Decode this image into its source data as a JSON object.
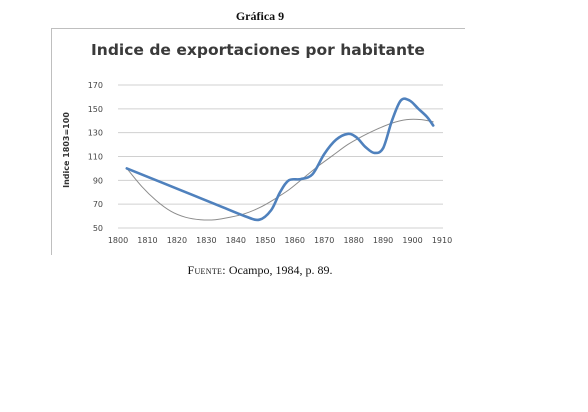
{
  "figure": {
    "heading": "Gráfica 9",
    "source_label": "Fuente:",
    "source_text": " Ocampo, 1984, p. 89."
  },
  "chart_data": {
    "type": "line",
    "title": "Indice de exportaciones por habitante",
    "xlabel": "",
    "ylabel": "Indice 1803=100",
    "xlim": [
      1800,
      1910
    ],
    "ylim": [
      50,
      170
    ],
    "xticks": [
      1800,
      1810,
      1820,
      1830,
      1840,
      1850,
      1860,
      1870,
      1880,
      1890,
      1900,
      1910
    ],
    "yticks": [
      50,
      70,
      90,
      110,
      130,
      150,
      170
    ],
    "grid": "horizontal",
    "legend": "none",
    "series": [
      {
        "key": "index",
        "color": "#4f81bd",
        "x": [
          1803,
          1815,
          1825,
          1835,
          1843,
          1848,
          1852,
          1855,
          1858,
          1862,
          1866,
          1870,
          1874,
          1878,
          1881,
          1884,
          1887,
          1890,
          1893,
          1896,
          1899,
          1902,
          1905,
          1907
        ],
        "y": [
          100,
          88,
          78,
          68,
          60,
          57,
          65,
          80,
          90,
          91,
          95,
          112,
          124,
          129,
          126,
          118,
          113,
          117,
          140,
          157,
          157,
          150,
          143,
          136
        ]
      },
      {
        "key": "trend",
        "color": "#8c8c8c",
        "x": [
          1803,
          1808,
          1813,
          1818,
          1823,
          1828,
          1833,
          1838,
          1843,
          1848,
          1853,
          1858,
          1863,
          1868,
          1873,
          1878,
          1883,
          1888,
          1893,
          1898,
          1903,
          1907
        ],
        "y": [
          100,
          85,
          73,
          64,
          59,
          57,
          57,
          59,
          62,
          67,
          74,
          82,
          92,
          102,
          111,
          120,
          127,
          133,
          138,
          141,
          141,
          139
        ]
      }
    ]
  }
}
